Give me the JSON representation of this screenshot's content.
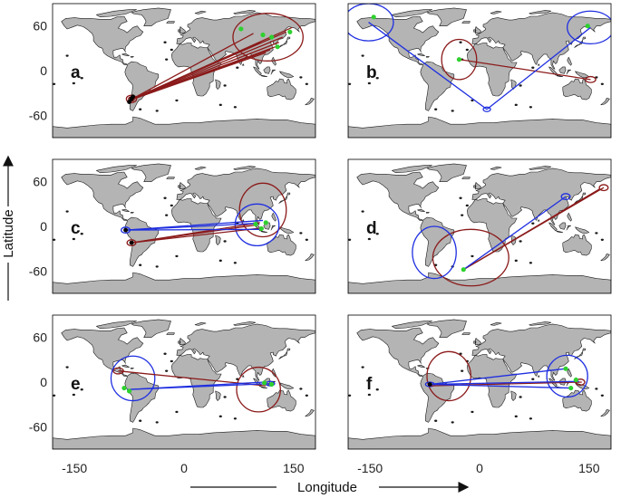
{
  "axes": {
    "x_title": "Longitude",
    "y_title": "Latitude",
    "x_ticks": [
      -150,
      0,
      150
    ],
    "y_ticks": [
      60,
      0,
      -60
    ],
    "x_range": [
      -180,
      180
    ],
    "y_range": [
      -90,
      90
    ]
  },
  "colors": {
    "ocean": "#ffffff",
    "land": "#b4b4b4",
    "coast": "#1a1a1a",
    "red": "#8b1a1a",
    "blue": "#1f2fe0",
    "green": "#2ed12e",
    "frame": "#000000"
  },
  "panels": [
    {
      "label": "a",
      "red_lines": [
        {
          "from": [
            -75,
            -40
          ],
          "to": [
            148,
            58
          ]
        },
        {
          "from": [
            -75,
            -40
          ],
          "to": [
            140,
            52
          ]
        },
        {
          "from": [
            -75,
            -40
          ],
          "to": [
            135,
            45
          ]
        },
        {
          "from": [
            -75,
            -40
          ],
          "to": [
            130,
            38
          ]
        },
        {
          "from": [
            -75,
            -40
          ],
          "to": [
            125,
            32
          ]
        },
        {
          "from": [
            -75,
            -40
          ],
          "to": [
            118,
            28
          ]
        },
        {
          "from": [
            -75,
            -40
          ],
          "to": [
            112,
            24
          ]
        },
        {
          "from": [
            -75,
            -40
          ],
          "to": [
            105,
            38
          ]
        },
        {
          "from": [
            -75,
            -40
          ],
          "to": [
            95,
            50
          ]
        }
      ],
      "blue_lines": [],
      "ellipses": [
        {
          "color": "red",
          "cx": 115,
          "cy": 45,
          "rx": 48,
          "ry": 32
        },
        {
          "color": "red",
          "cx": -72,
          "cy": -38,
          "rx": 7,
          "ry": 5
        },
        {
          "color": "red",
          "cx": -72,
          "cy": -38,
          "rx": 4,
          "ry": 3
        }
      ],
      "green_points": [
        [
          78,
          56
        ],
        [
          108,
          48
        ],
        [
          128,
          32
        ],
        [
          145,
          52
        ],
        [
          120,
          45
        ]
      ],
      "black_points": [
        [
          -72,
          -38
        ],
        [
          -75,
          -42
        ],
        [
          -70,
          -35
        ]
      ]
    },
    {
      "label": "b",
      "red_lines": [
        {
          "from": [
            -28,
            15
          ],
          "to": [
            152,
            -12
          ]
        }
      ],
      "blue_lines": [
        {
          "from": [
            -152,
            65
          ],
          "to": [
            10,
            -52
          ]
        },
        {
          "from": [
            10,
            -52
          ],
          "to": [
            152,
            58
          ]
        }
      ],
      "ellipses": [
        {
          "color": "red",
          "cx": -28,
          "cy": 15,
          "rx": 24,
          "ry": 27
        },
        {
          "color": "red",
          "cx": 152,
          "cy": -12,
          "rx": 7,
          "ry": 4
        },
        {
          "color": "blue",
          "cx": -152,
          "cy": 65,
          "rx": 34,
          "ry": 25
        },
        {
          "color": "blue",
          "cx": 152,
          "cy": 58,
          "rx": 32,
          "ry": 22
        },
        {
          "color": "blue",
          "cx": 10,
          "cy": -52,
          "rx": 5,
          "ry": 3
        }
      ],
      "green_points": [
        [
          -28,
          15
        ],
        [
          -145,
          72
        ],
        [
          148,
          60
        ]
      ],
      "black_points": []
    },
    {
      "label": "c",
      "red_lines": [
        {
          "from": [
            -72,
            -22
          ],
          "to": [
            100,
            2
          ]
        },
        {
          "from": [
            -72,
            -22
          ],
          "to": [
            108,
            -2
          ]
        },
        {
          "from": [
            -72,
            -22
          ],
          "to": [
            104,
            5
          ]
        }
      ],
      "blue_lines": [
        {
          "from": [
            -80,
            -5
          ],
          "to": [
            98,
            4
          ]
        },
        {
          "from": [
            -80,
            -5
          ],
          "to": [
            108,
            8
          ]
        },
        {
          "from": [
            -80,
            -5
          ],
          "to": [
            103,
            -4
          ]
        }
      ],
      "ellipses": [
        {
          "color": "red",
          "cx": 108,
          "cy": 22,
          "rx": 32,
          "ry": 36
        },
        {
          "color": "red",
          "cx": -72,
          "cy": -22,
          "rx": 6,
          "ry": 4
        },
        {
          "color": "blue",
          "cx": 100,
          "cy": 2,
          "rx": 30,
          "ry": 28
        },
        {
          "color": "blue",
          "cx": -80,
          "cy": -5,
          "rx": 6,
          "ry": 4
        }
      ],
      "green_points": [
        [
          98,
          3
        ],
        [
          112,
          5
        ],
        [
          106,
          -3
        ]
      ],
      "black_points": [
        [
          -80,
          -5
        ],
        [
          -72,
          -22
        ]
      ]
    },
    {
      "label": "d",
      "red_lines": [
        {
          "from": [
            -22,
            -58
          ],
          "to": [
            170,
            52
          ]
        },
        {
          "from": [
            -22,
            -58
          ],
          "to": [
            164,
            50
          ]
        }
      ],
      "blue_lines": [
        {
          "from": [
            -22,
            -58
          ],
          "to": [
            118,
            40
          ]
        }
      ],
      "ellipses": [
        {
          "color": "red",
          "cx": -12,
          "cy": -42,
          "rx": 52,
          "ry": 38
        },
        {
          "color": "red",
          "cx": 170,
          "cy": 52,
          "rx": 6,
          "ry": 4
        },
        {
          "color": "blue",
          "cx": -62,
          "cy": -35,
          "rx": 30,
          "ry": 35
        },
        {
          "color": "blue",
          "cx": 118,
          "cy": 40,
          "rx": 6,
          "ry": 4
        }
      ],
      "green_points": [
        [
          -22,
          -58
        ]
      ],
      "black_points": []
    },
    {
      "label": "e",
      "red_lines": [
        {
          "from": [
            -90,
            15
          ],
          "to": [
            112,
            -5
          ]
        }
      ],
      "blue_lines": [
        {
          "from": [
            -78,
            -10
          ],
          "to": [
            110,
            0
          ]
        },
        {
          "from": [
            -78,
            -10
          ],
          "to": [
            118,
            -2
          ]
        }
      ],
      "ellipses": [
        {
          "color": "red",
          "cx": 102,
          "cy": -10,
          "rx": 30,
          "ry": 30
        },
        {
          "color": "red",
          "cx": -90,
          "cy": 15,
          "rx": 7,
          "ry": 4
        },
        {
          "color": "blue",
          "cx": -70,
          "cy": 5,
          "rx": 30,
          "ry": 30
        },
        {
          "color": "blue",
          "cx": 118,
          "cy": -2,
          "rx": 6,
          "ry": 3
        }
      ],
      "green_points": [
        [
          -75,
          -12
        ],
        [
          -82,
          -8
        ],
        [
          110,
          -1
        ],
        [
          120,
          -3
        ]
      ],
      "black_points": []
    },
    {
      "label": "f",
      "red_lines": [
        {
          "from": [
            -68,
            -5
          ],
          "to": [
            140,
            0
          ]
        }
      ],
      "blue_lines": [
        {
          "from": [
            -68,
            -3
          ],
          "to": [
            118,
            18
          ]
        },
        {
          "from": [
            -68,
            -3
          ],
          "to": [
            125,
            -8
          ]
        },
        {
          "from": [
            -68,
            -3
          ],
          "to": [
            136,
            1
          ]
        }
      ],
      "ellipses": [
        {
          "color": "red",
          "cx": -42,
          "cy": 8,
          "rx": 30,
          "ry": 33
        },
        {
          "color": "red",
          "cx": 138,
          "cy": 0,
          "rx": 6,
          "ry": 4
        },
        {
          "color": "blue",
          "cx": 120,
          "cy": 8,
          "rx": 28,
          "ry": 28
        },
        {
          "color": "blue",
          "cx": -68,
          "cy": -3,
          "rx": 6,
          "ry": 3
        }
      ],
      "green_points": [
        [
          118,
          18
        ],
        [
          125,
          -8
        ],
        [
          132,
          3
        ]
      ],
      "black_points": [
        [
          -68,
          -3
        ]
      ]
    }
  ]
}
